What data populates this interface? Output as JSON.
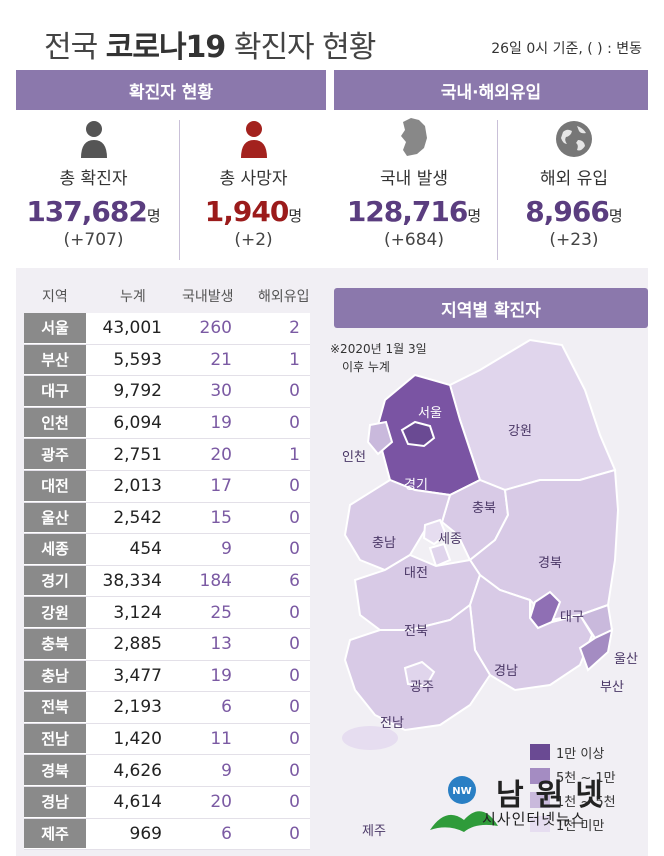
{
  "header": {
    "title_pre": "전국 ",
    "title_bold": "코로나19",
    "title_post": " 확진자 현황",
    "basis": "26일 0시 기준, ( ) : 변동"
  },
  "panels": {
    "left_title": "확진자 현황",
    "right_title": "국내·해외유입"
  },
  "stats": [
    {
      "label": "총 확진자",
      "value": "137,682",
      "unit": "명",
      "change": "(+707)",
      "icon": "person-icon"
    },
    {
      "label": "총 사망자",
      "value": "1,940",
      "unit": "명",
      "change": "(+2)",
      "icon": "person-icon"
    },
    {
      "label": "국내 발생",
      "value": "128,716",
      "unit": "명",
      "change": "(+684)",
      "icon": "korea-map-icon"
    },
    {
      "label": "해외 유입",
      "value": "8,966",
      "unit": "명",
      "change": "(+23)",
      "icon": "globe-icon"
    }
  ],
  "table": {
    "headers": [
      "지역",
      "누계",
      "국내발생",
      "해외유입"
    ],
    "rows": [
      {
        "region": "서울",
        "total": "43,001",
        "domestic": "260",
        "imported": "2"
      },
      {
        "region": "부산",
        "total": "5,593",
        "domestic": "21",
        "imported": "1"
      },
      {
        "region": "대구",
        "total": "9,792",
        "domestic": "30",
        "imported": "0"
      },
      {
        "region": "인천",
        "total": "6,094",
        "domestic": "19",
        "imported": "0"
      },
      {
        "region": "광주",
        "total": "2,751",
        "domestic": "20",
        "imported": "1"
      },
      {
        "region": "대전",
        "total": "2,013",
        "domestic": "17",
        "imported": "0"
      },
      {
        "region": "울산",
        "total": "2,542",
        "domestic": "15",
        "imported": "0"
      },
      {
        "region": "세종",
        "total": "454",
        "domestic": "9",
        "imported": "0"
      },
      {
        "region": "경기",
        "total": "38,334",
        "domestic": "184",
        "imported": "6"
      },
      {
        "region": "강원",
        "total": "3,124",
        "domestic": "25",
        "imported": "0"
      },
      {
        "region": "충북",
        "total": "2,885",
        "domestic": "13",
        "imported": "0"
      },
      {
        "region": "충남",
        "total": "3,477",
        "domestic": "19",
        "imported": "0"
      },
      {
        "region": "전북",
        "total": "2,193",
        "domestic": "6",
        "imported": "0"
      },
      {
        "region": "전남",
        "total": "1,420",
        "domestic": "11",
        "imported": "0"
      },
      {
        "region": "경북",
        "total": "4,626",
        "domestic": "9",
        "imported": "0"
      },
      {
        "region": "경남",
        "total": "4,614",
        "domestic": "20",
        "imported": "0"
      },
      {
        "region": "제주",
        "total": "969",
        "domestic": "6",
        "imported": "0"
      }
    ]
  },
  "map": {
    "title": "지역별 확진자",
    "note_line1": "※2020년 1월 3일",
    "note_line2": "이후 누계",
    "labels": {
      "seoul": "서울",
      "incheon": "인천",
      "gyeonggi": "경기",
      "gangwon": "강원",
      "chungbuk": "충북",
      "sejong": "세종",
      "chungnam": "충남",
      "daejeon": "대전",
      "gyeongbuk": "경북",
      "daegu": "대구",
      "jeonbuk": "전북",
      "ulsan": "울산",
      "busan": "부산",
      "gyeongnam": "경남",
      "gwangju": "광주",
      "jeonnam": "전남",
      "jeju": "제주"
    },
    "legend": [
      {
        "label": "1만 이상",
        "color": "#6a4a93"
      },
      {
        "label": "5천 ~ 1만",
        "color": "#a48cc2"
      },
      {
        "label": "1천 ~ 5천",
        "color": "#c9b9dc"
      },
      {
        "label": "1천 미만",
        "color": "#e6ddf0"
      }
    ]
  },
  "watermark": {
    "name": "남원넷",
    "subtitle": "시사인터넷뉴스",
    "logo_text": "NW"
  }
}
